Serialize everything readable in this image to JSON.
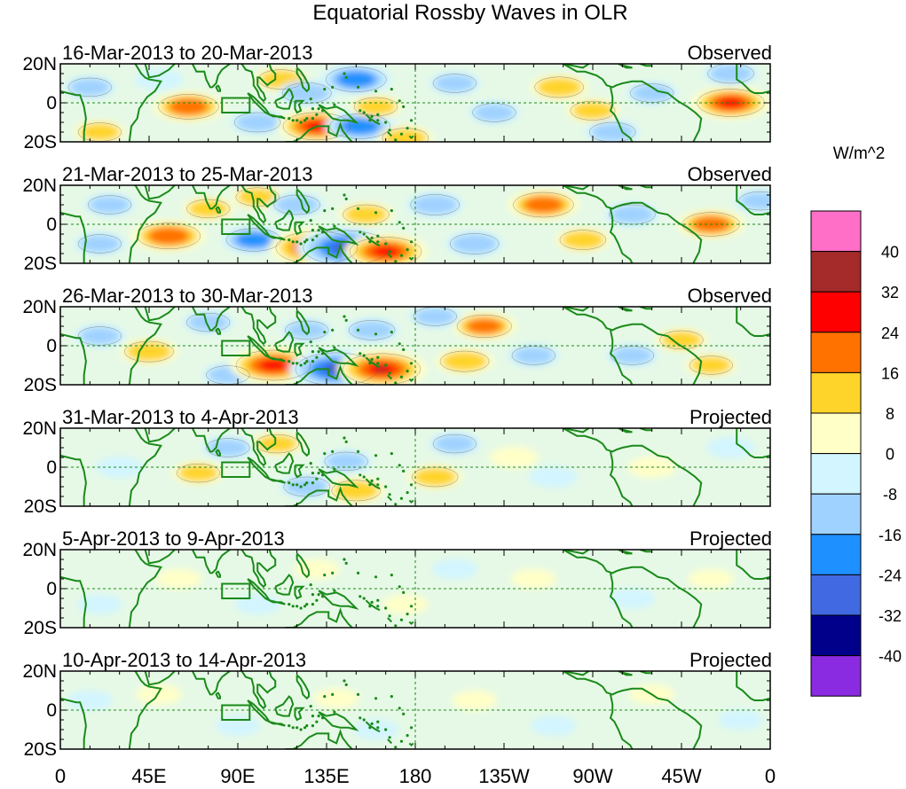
{
  "chart_data": {
    "type": "heatmap",
    "title": "Equatorial Rossby Waves in OLR",
    "units": "W/m^2",
    "x_ticks": [
      "0",
      "45E",
      "90E",
      "135E",
      "180",
      "135W",
      "90W",
      "45W",
      "0"
    ],
    "x_tick_lons": [
      0,
      45,
      90,
      135,
      180,
      225,
      270,
      315,
      360
    ],
    "y_ticks": [
      "20N",
      "0",
      "20S"
    ],
    "y_tick_lats": [
      20,
      0,
      -20
    ],
    "xlim": [
      0,
      360
    ],
    "ylim": [
      -20,
      20
    ],
    "colorbar": {
      "tick_labels": [
        "40",
        "32",
        "24",
        "16",
        "8",
        "0",
        "-8",
        "-16",
        "-24",
        "-32",
        "-40"
      ],
      "colors": [
        "#ff6ec7",
        "#a52a2a",
        "#ff0000",
        "#ff7200",
        "#ffd42a",
        "#ffffc8",
        "#d2f5ff",
        "#a0d2ff",
        "#1e90ff",
        "#4169e1",
        "#00008b",
        "#8a2be2"
      ]
    },
    "panels": [
      {
        "date_range": "16-Mar-2013 to 20-Mar-2013",
        "status": "Observed",
        "anomalies": [
          {
            "lon": 65,
            "lat": -2,
            "value": 20
          },
          {
            "lon": 50,
            "lat": 12,
            "value": -6
          },
          {
            "lon": 112,
            "lat": 12,
            "value": 10
          },
          {
            "lon": 100,
            "lat": -10,
            "value": -10
          },
          {
            "lon": 125,
            "lat": 5,
            "value": -12
          },
          {
            "lon": 150,
            "lat": 12,
            "value": -20
          },
          {
            "lon": 130,
            "lat": -12,
            "value": 25
          },
          {
            "lon": 152,
            "lat": -12,
            "value": -20
          },
          {
            "lon": 160,
            "lat": -2,
            "value": 8
          },
          {
            "lon": 175,
            "lat": -18,
            "value": 10
          },
          {
            "lon": 200,
            "lat": 10,
            "value": -8
          },
          {
            "lon": 220,
            "lat": -5,
            "value": -8
          },
          {
            "lon": 253,
            "lat": 8,
            "value": 12
          },
          {
            "lon": 270,
            "lat": -4,
            "value": 9
          },
          {
            "lon": 300,
            "lat": 5,
            "value": -8
          },
          {
            "lon": 280,
            "lat": -15,
            "value": -10
          },
          {
            "lon": 340,
            "lat": 0,
            "value": 25
          },
          {
            "lon": 340,
            "lat": 15,
            "value": -10
          },
          {
            "lon": 15,
            "lat": 8,
            "value": -8
          },
          {
            "lon": 20,
            "lat": -15,
            "value": 8
          }
        ]
      },
      {
        "date_range": "21-Mar-2013 to 25-Mar-2013",
        "status": "Observed",
        "anomalies": [
          {
            "lon": 55,
            "lat": -6,
            "value": 22
          },
          {
            "lon": 75,
            "lat": 8,
            "value": 8
          },
          {
            "lon": 100,
            "lat": 14,
            "value": 8
          },
          {
            "lon": 98,
            "lat": -8,
            "value": -16
          },
          {
            "lon": 130,
            "lat": -12,
            "value": 35
          },
          {
            "lon": 145,
            "lat": -12,
            "value": -38
          },
          {
            "lon": 165,
            "lat": -14,
            "value": 28
          },
          {
            "lon": 120,
            "lat": 10,
            "value": -10
          },
          {
            "lon": 155,
            "lat": 5,
            "value": 10
          },
          {
            "lon": 190,
            "lat": 10,
            "value": -12
          },
          {
            "lon": 210,
            "lat": -10,
            "value": -12
          },
          {
            "lon": 245,
            "lat": 10,
            "value": 20
          },
          {
            "lon": 265,
            "lat": -8,
            "value": 10
          },
          {
            "lon": 290,
            "lat": 5,
            "value": -10
          },
          {
            "lon": 330,
            "lat": 0,
            "value": 18
          },
          {
            "lon": 355,
            "lat": 12,
            "value": -8
          },
          {
            "lon": 25,
            "lat": 10,
            "value": -8
          },
          {
            "lon": 20,
            "lat": -10,
            "value": -8
          }
        ]
      },
      {
        "date_range": "26-Mar-2013 to 30-Mar-2013",
        "status": "Observed",
        "anomalies": [
          {
            "lon": 45,
            "lat": -3,
            "value": 12
          },
          {
            "lon": 75,
            "lat": 12,
            "value": -8
          },
          {
            "lon": 85,
            "lat": -15,
            "value": -8
          },
          {
            "lon": 108,
            "lat": -10,
            "value": 30
          },
          {
            "lon": 140,
            "lat": -12,
            "value": -35
          },
          {
            "lon": 163,
            "lat": -12,
            "value": 32
          },
          {
            "lon": 125,
            "lat": 8,
            "value": -8
          },
          {
            "lon": 158,
            "lat": 8,
            "value": -10
          },
          {
            "lon": 205,
            "lat": -8,
            "value": 12
          },
          {
            "lon": 215,
            "lat": 10,
            "value": 16
          },
          {
            "lon": 190,
            "lat": 15,
            "value": -8
          },
          {
            "lon": 240,
            "lat": -5,
            "value": -8
          },
          {
            "lon": 290,
            "lat": -5,
            "value": -8
          },
          {
            "lon": 315,
            "lat": 3,
            "value": 8
          },
          {
            "lon": 330,
            "lat": -10,
            "value": 8
          },
          {
            "lon": 20,
            "lat": 5,
            "value": -8
          }
        ]
      },
      {
        "date_range": "31-Mar-2013 to 4-Apr-2013",
        "status": "Projected",
        "anomalies": [
          {
            "lon": 70,
            "lat": -3,
            "value": 8
          },
          {
            "lon": 85,
            "lat": 10,
            "value": -8
          },
          {
            "lon": 110,
            "lat": 12,
            "value": 8
          },
          {
            "lon": 125,
            "lat": -10,
            "value": -10
          },
          {
            "lon": 150,
            "lat": -12,
            "value": 12
          },
          {
            "lon": 145,
            "lat": 3,
            "value": -8
          },
          {
            "lon": 190,
            "lat": -5,
            "value": 10
          },
          {
            "lon": 200,
            "lat": 12,
            "value": -8
          },
          {
            "lon": 230,
            "lat": 5,
            "value": 6
          },
          {
            "lon": 250,
            "lat": -5,
            "value": -6
          },
          {
            "lon": 300,
            "lat": 0,
            "value": 6
          },
          {
            "lon": 30,
            "lat": 0,
            "value": -6
          },
          {
            "lon": 340,
            "lat": 10,
            "value": -6
          }
        ]
      },
      {
        "date_range": "5-Apr-2013 to 9-Apr-2013",
        "status": "Projected",
        "anomalies": [
          {
            "lon": 60,
            "lat": 5,
            "value": 4
          },
          {
            "lon": 100,
            "lat": -8,
            "value": -4
          },
          {
            "lon": 130,
            "lat": 10,
            "value": 4
          },
          {
            "lon": 175,
            "lat": -8,
            "value": 4
          },
          {
            "lon": 200,
            "lat": 10,
            "value": -4
          },
          {
            "lon": 240,
            "lat": 5,
            "value": 4
          },
          {
            "lon": 290,
            "lat": -5,
            "value": -4
          },
          {
            "lon": 330,
            "lat": 5,
            "value": 4
          },
          {
            "lon": 20,
            "lat": -8,
            "value": -4
          }
        ]
      },
      {
        "date_range": "10-Apr-2013 to 14-Apr-2013",
        "status": "Projected",
        "anomalies": [
          {
            "lon": 50,
            "lat": 8,
            "value": 4
          },
          {
            "lon": 90,
            "lat": -8,
            "value": -4
          },
          {
            "lon": 140,
            "lat": 6,
            "value": 4
          },
          {
            "lon": 160,
            "lat": -10,
            "value": -4
          },
          {
            "lon": 210,
            "lat": 5,
            "value": 4
          },
          {
            "lon": 250,
            "lat": -8,
            "value": -4
          },
          {
            "lon": 300,
            "lat": 8,
            "value": 4
          },
          {
            "lon": 345,
            "lat": -5,
            "value": -4
          },
          {
            "lon": 15,
            "lat": 5,
            "value": -4
          }
        ]
      }
    ]
  }
}
